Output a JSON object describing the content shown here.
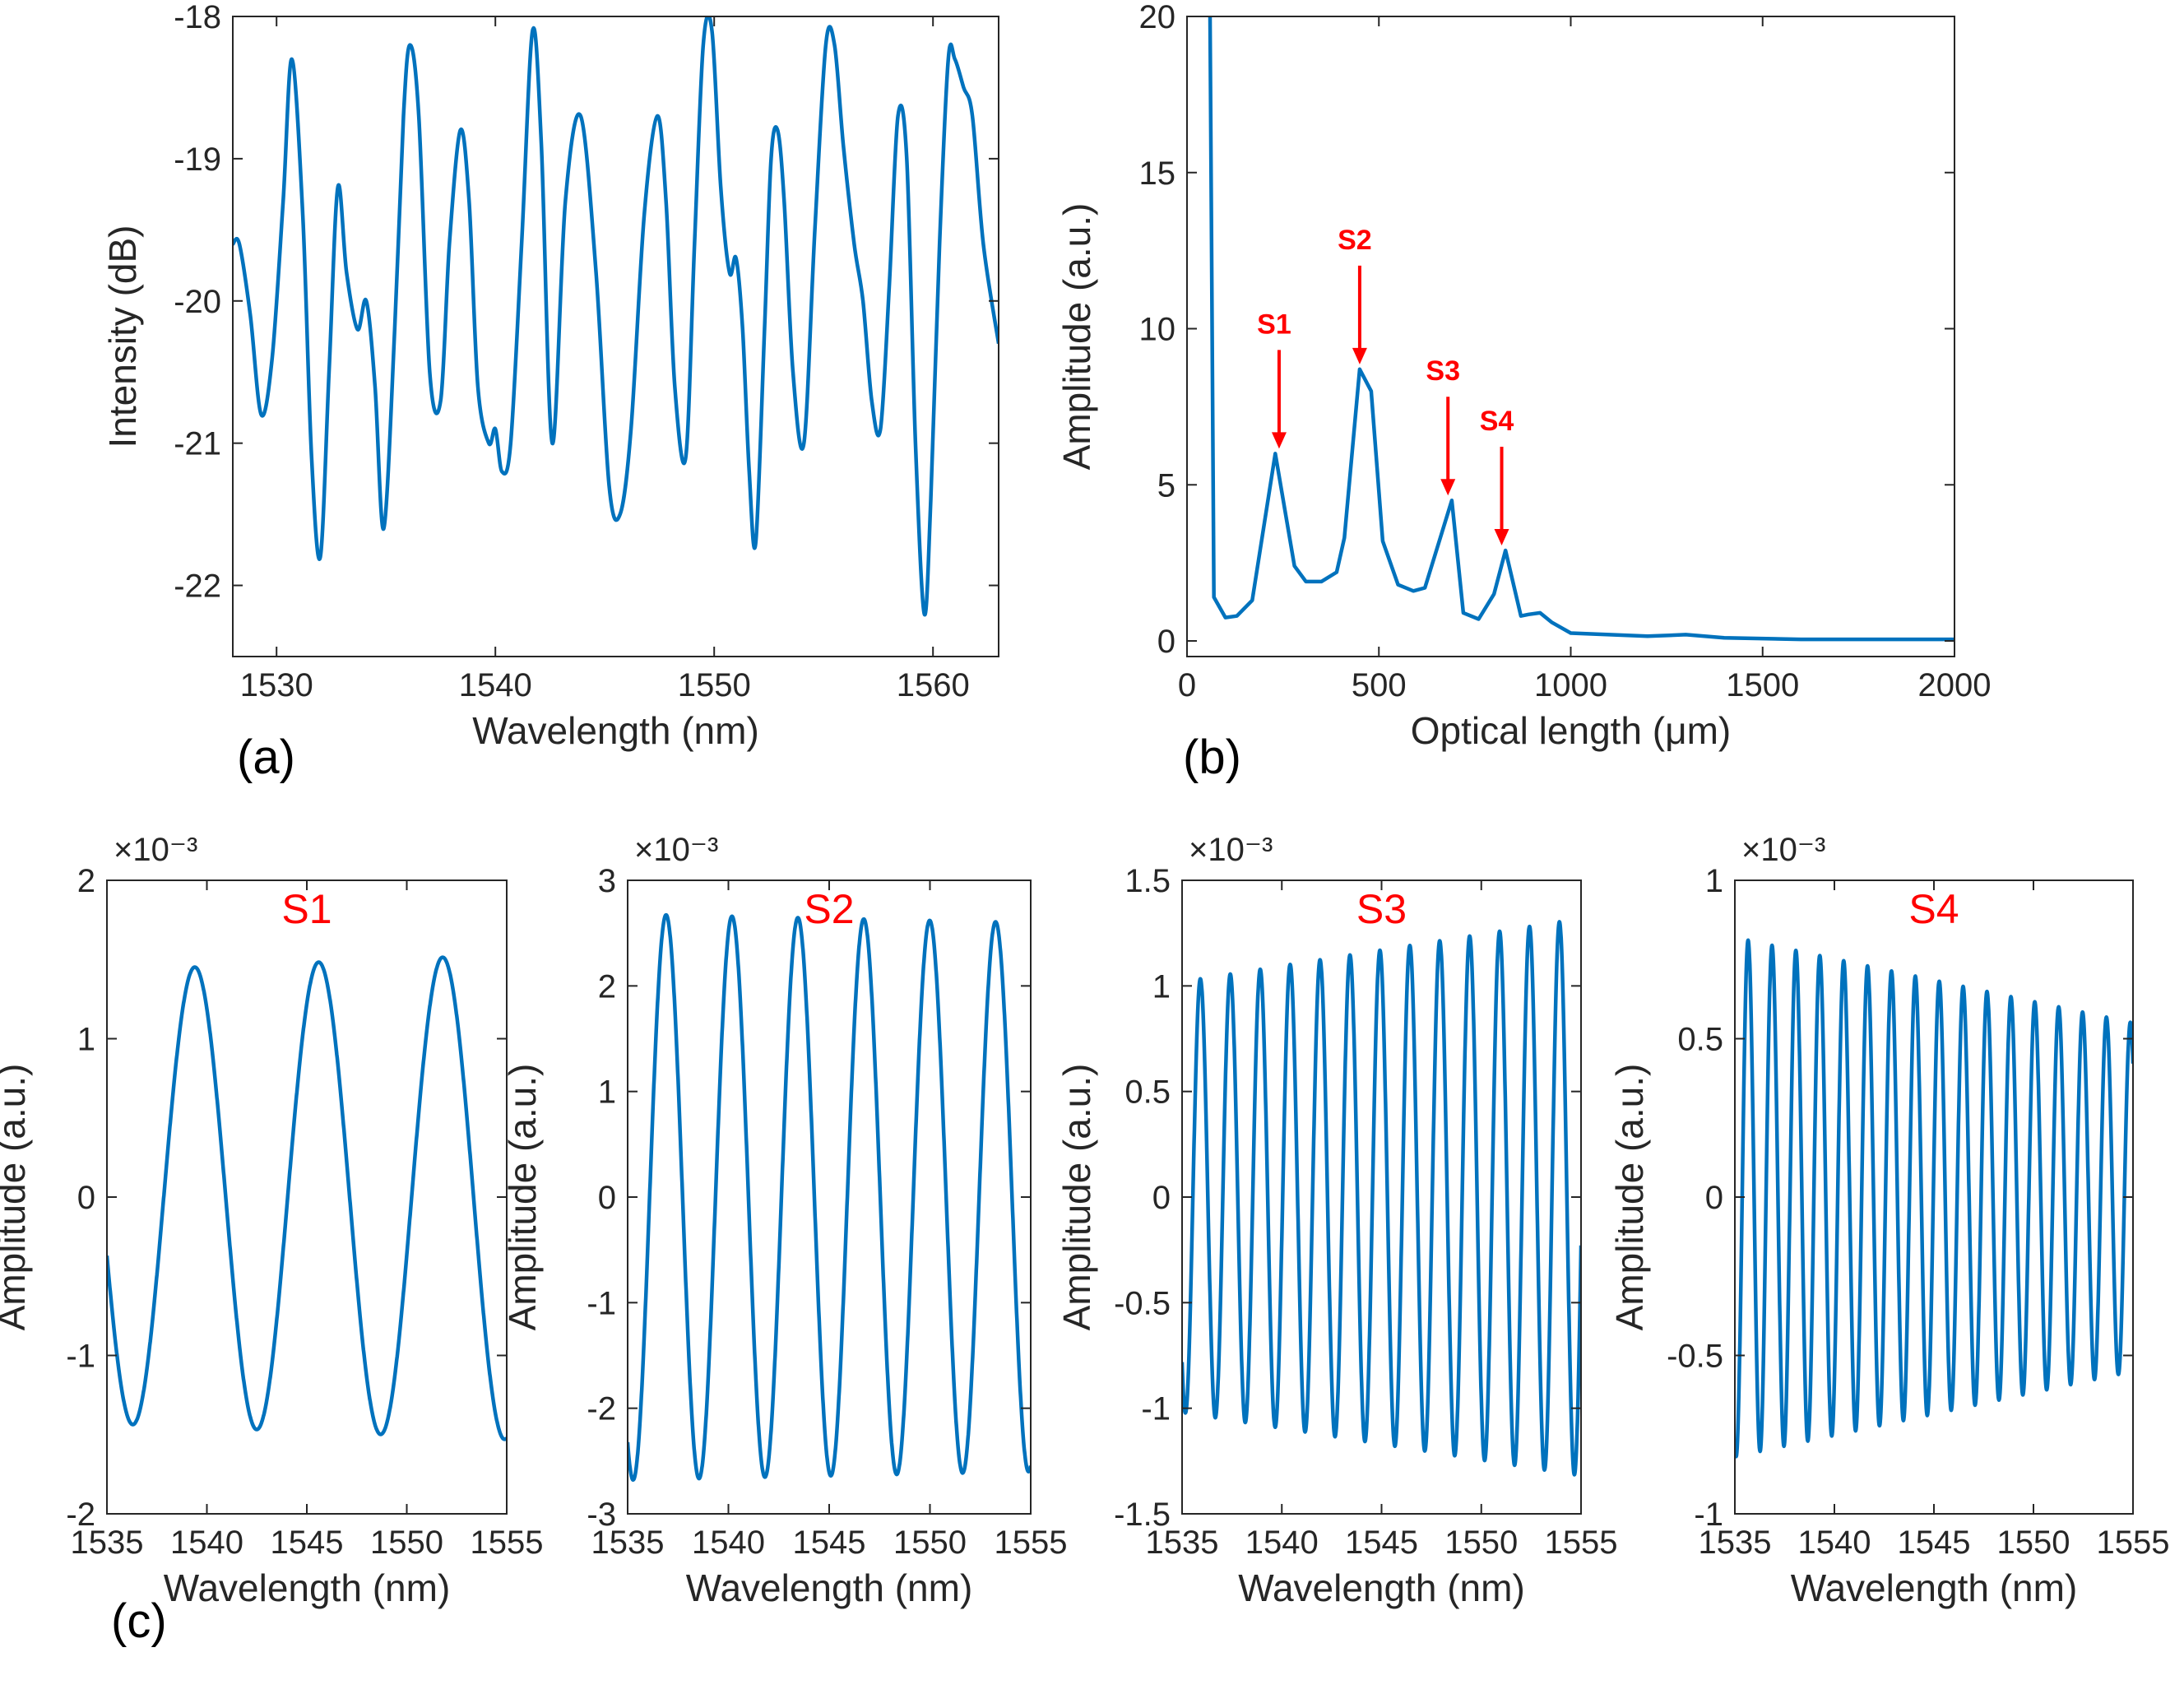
{
  "colors": {
    "series": "#0072BD",
    "annotation": "#ff0000",
    "axis": "#262626"
  },
  "chart_data": [
    {
      "id": "a",
      "panel_label": "(a)",
      "type": "line",
      "xlabel": "Wavelength (nm)",
      "ylabel": "Intensity (dB)",
      "xlim": [
        1528,
        1563
      ],
      "ylim": [
        -22.5,
        -18
      ],
      "xticks": [
        1530,
        1540,
        1550,
        1560
      ],
      "yticks": [
        -22,
        -21,
        -20,
        -19,
        -18
      ],
      "series": [
        {
          "name": "spectrum",
          "x": [
            1528,
            1528.3,
            1528.8,
            1529.3,
            1529.8,
            1530.3,
            1530.7,
            1531.2,
            1531.6,
            1532.0,
            1532.4,
            1532.8,
            1533.2,
            1533.7,
            1534.1,
            1534.5,
            1534.9,
            1535.4,
            1535.8,
            1536.1,
            1536.5,
            1537.0,
            1537.5,
            1537.9,
            1538.4,
            1538.8,
            1539.2,
            1539.7,
            1540.0,
            1540.3,
            1540.7,
            1541.2,
            1541.7,
            1542.1,
            1542.6,
            1543.2,
            1543.9,
            1544.6,
            1545.2,
            1545.7,
            1546.2,
            1546.8,
            1547.4,
            1547.8,
            1548.2,
            1548.7,
            1549.1,
            1549.5,
            1549.9,
            1550.3,
            1550.7,
            1551.0,
            1551.3,
            1551.6,
            1551.9,
            1552.3,
            1552.6,
            1552.9,
            1553.2,
            1553.6,
            1554.1,
            1554.6,
            1555.1,
            1555.5,
            1555.9,
            1556.4,
            1556.8,
            1557.2,
            1557.6,
            1558.0,
            1558.4,
            1558.8,
            1559.2,
            1559.6,
            1559.9,
            1560.3,
            1560.7,
            1561.0,
            1561.4,
            1561.8,
            1562.3,
            1563.0
          ],
          "y": [
            -19.6,
            -19.6,
            -20.1,
            -20.8,
            -20.4,
            -19.3,
            -18.3,
            -19.4,
            -21.1,
            -21.8,
            -20.5,
            -19.2,
            -19.8,
            -20.2,
            -20.0,
            -20.6,
            -21.6,
            -20.2,
            -18.7,
            -18.2,
            -18.7,
            -20.5,
            -20.7,
            -19.6,
            -18.8,
            -19.3,
            -20.6,
            -21.0,
            -20.9,
            -21.2,
            -21.0,
            -19.6,
            -18.1,
            -18.9,
            -21.0,
            -19.3,
            -18.7,
            -19.8,
            -21.3,
            -21.5,
            -20.9,
            -19.4,
            -18.7,
            -19.3,
            -20.6,
            -21.1,
            -19.6,
            -18.2,
            -18.1,
            -19.2,
            -19.8,
            -19.7,
            -20.2,
            -21.2,
            -21.7,
            -20.2,
            -19.0,
            -18.8,
            -19.3,
            -20.5,
            -21.0,
            -19.5,
            -18.2,
            -18.2,
            -18.9,
            -19.6,
            -20.0,
            -20.7,
            -20.9,
            -19.9,
            -18.7,
            -19.0,
            -21.0,
            -22.2,
            -21.4,
            -19.6,
            -18.3,
            -18.3,
            -18.5,
            -18.7,
            -19.6,
            -20.3
          ]
        }
      ]
    },
    {
      "id": "b",
      "panel_label": "(b)",
      "type": "line",
      "xlabel": "Optical length (μm)",
      "ylabel": "Amplitude (a.u.)",
      "xlim": [
        0,
        2000
      ],
      "ylim": [
        -0.5,
        20
      ],
      "xticks": [
        0,
        500,
        1000,
        1500,
        2000
      ],
      "yticks": [
        0,
        5,
        10,
        15,
        20
      ],
      "series": [
        {
          "name": "fft",
          "x": [
            60,
            70,
            100,
            130,
            170,
            230,
            280,
            310,
            350,
            390,
            410,
            450,
            480,
            510,
            550,
            590,
            620,
            690,
            720,
            760,
            800,
            830,
            870,
            890,
            920,
            950,
            1000,
            1200,
            1300,
            1400,
            1600,
            2000
          ],
          "y": [
            20,
            1.4,
            0.75,
            0.8,
            1.3,
            6.0,
            2.4,
            1.9,
            1.9,
            2.2,
            3.3,
            8.7,
            8.0,
            3.2,
            1.8,
            1.6,
            1.7,
            4.5,
            0.9,
            0.7,
            1.5,
            2.9,
            0.8,
            0.85,
            0.9,
            0.6,
            0.25,
            0.15,
            0.2,
            0.1,
            0.05,
            0.05
          ]
        }
      ],
      "annotations": [
        {
          "text": "S1",
          "x": 240,
          "y": 6.0
        },
        {
          "text": "S2",
          "x": 450,
          "y": 8.7
        },
        {
          "text": "S3",
          "x": 680,
          "y": 4.5
        },
        {
          "text": "S4",
          "x": 820,
          "y": 2.9
        }
      ]
    },
    {
      "id": "c1",
      "panel_label": "(c)",
      "type": "line",
      "title": "S1",
      "xlabel": "Wavelength (nm)",
      "ylabel": "Amplitude (a.u.)",
      "multiplier": "×10⁻³",
      "xlim": [
        1535,
        1555
      ],
      "ylim": [
        -2,
        2
      ],
      "xticks": [
        1535,
        1540,
        1545,
        1550,
        1555
      ],
      "yticks": [
        -2,
        -1,
        0,
        1,
        2
      ],
      "series": [
        {
          "name": "S1",
          "amplitude_start": 1.43,
          "amplitude_end": 1.53,
          "period": 6.2,
          "phase_deg": 195
        }
      ]
    },
    {
      "id": "c2",
      "type": "line",
      "title": "S2",
      "xlabel": "Wavelength (nm)",
      "ylabel": "Amplitude (a.u.)",
      "multiplier": "×10⁻³",
      "xlim": [
        1535,
        1555
      ],
      "ylim": [
        -3,
        3
      ],
      "xticks": [
        1535,
        1540,
        1545,
        1550,
        1555
      ],
      "yticks": [
        -3,
        -2,
        -1,
        0,
        1,
        2,
        3
      ],
      "series": [
        {
          "name": "S2",
          "amplitude_start": 2.68,
          "amplitude_end": 2.6,
          "period": 3.27,
          "phase_deg": 240
        }
      ]
    },
    {
      "id": "c3",
      "type": "line",
      "title": "S3",
      "xlabel": "Wavelength (nm)",
      "ylabel": "Amplitude (a.u.)",
      "multiplier": "×10⁻³",
      "xlim": [
        1535,
        1555
      ],
      "ylim": [
        -1.5,
        1.5
      ],
      "xticks": [
        1535,
        1540,
        1545,
        1550,
        1555
      ],
      "yticks": [
        -1.5,
        -1,
        -0.5,
        0,
        0.5,
        1,
        1.5
      ],
      "series": [
        {
          "name": "S3",
          "amplitude_start": 1.02,
          "amplitude_end": 1.32,
          "period": 1.5,
          "phase_deg": 230
        }
      ]
    },
    {
      "id": "c4",
      "type": "line",
      "title": "S4",
      "xlabel": "Wavelength (nm)",
      "ylabel": "Amplitude (a.u.)",
      "multiplier": "×10⁻³",
      "xlim": [
        1535,
        1555
      ],
      "ylim": [
        -1,
        1
      ],
      "xticks": [
        1535,
        1540,
        1545,
        1550,
        1555
      ],
      "yticks": [
        -1,
        -0.5,
        0,
        0.5,
        1
      ],
      "series": [
        {
          "name": "S4",
          "amplitude_start": 0.82,
          "amplitude_end": 0.55,
          "period": 1.2,
          "phase_deg": 250
        }
      ]
    }
  ]
}
